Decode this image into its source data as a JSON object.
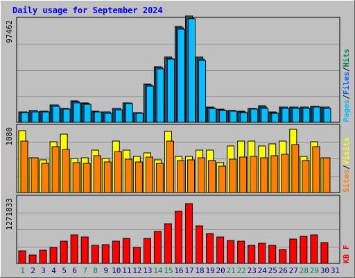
{
  "title": "Daily usage for September 2024",
  "colors": {
    "background": "#c0c0c0",
    "title_text": "#0000ff",
    "gridline": "#909090",
    "hits": "#00805c",
    "files": "#0066ff",
    "pages": "#00c0ff",
    "visits": "#ffff00",
    "sites": "#ff8000",
    "kbytes": "#ff0000",
    "weekday_label": "#000080",
    "weekend_label": "#00805c"
  },
  "chart_data": [
    {
      "type": "bar",
      "panel": "hits-files-pages",
      "ymax_label": "97462",
      "ylim": [
        0,
        97462
      ],
      "categories": [
        "1",
        "2",
        "3",
        "4",
        "5",
        "6",
        "7",
        "8",
        "9",
        "10",
        "11",
        "12",
        "13",
        "14",
        "15",
        "16",
        "17",
        "18",
        "19",
        "20",
        "21",
        "22",
        "23",
        "24",
        "25",
        "26",
        "27",
        "28",
        "29",
        "30",
        "31"
      ],
      "weekend_days": [
        "1",
        "7",
        "8",
        "14",
        "15",
        "21",
        "22",
        "28",
        "29"
      ],
      "legend": [
        {
          "text": "Hits",
          "color_key": "hits"
        },
        {
          "text": "Files",
          "color_key": "files"
        },
        {
          "text": "Pages",
          "color_key": "pages"
        }
      ],
      "series": [
        {
          "name": "Hits",
          "values": [
            10000,
            11000,
            10500,
            16500,
            13400,
            20000,
            18000,
            10300,
            9700,
            13000,
            18300,
            9300,
            35800,
            52500,
            61400,
            90300,
            100000,
            61400,
            14300,
            12200,
            11300,
            10300,
            13400,
            15500,
            9500,
            14300,
            14300,
            14300,
            15200,
            14300,
            0
          ]
        },
        {
          "name": "Files",
          "values": [
            9900,
            10800,
            10300,
            16300,
            13200,
            19800,
            17800,
            10100,
            9500,
            12800,
            18100,
            9100,
            35000,
            51600,
            60500,
            89000,
            98000,
            59300,
            13700,
            11900,
            11100,
            10000,
            13200,
            14300,
            9300,
            14100,
            14100,
            14100,
            14900,
            14100,
            0
          ]
        },
        {
          "name": "Pages",
          "values": [
            9100,
            10000,
            9600,
            15200,
            12300,
            18600,
            16800,
            9600,
            8700,
            12000,
            17400,
            8500,
            33800,
            50500,
            59700,
            87900,
            97500,
            58400,
            13200,
            11200,
            10200,
            9100,
            12200,
            13200,
            8700,
            13200,
            13200,
            13200,
            14100,
            13200,
            0
          ]
        }
      ]
    },
    {
      "type": "bar",
      "panel": "visits-sites",
      "ymax_label": "1080",
      "ylim": [
        0,
        1080
      ],
      "categories": [
        "1",
        "2",
        "3",
        "4",
        "5",
        "6",
        "7",
        "8",
        "9",
        "10",
        "11",
        "12",
        "13",
        "14",
        "15",
        "16",
        "17",
        "18",
        "19",
        "20",
        "21",
        "22",
        "23",
        "24",
        "25",
        "26",
        "27",
        "28",
        "29",
        "30",
        "31"
      ],
      "legend": [
        {
          "text": "Visits",
          "color_key": "visits"
        },
        {
          "text": "Sites",
          "color_key": "sites"
        }
      ],
      "series": [
        {
          "name": "Visits",
          "values": [
            1000,
            560,
            530,
            820,
            950,
            550,
            560,
            690,
            550,
            830,
            690,
            590,
            640,
            530,
            990,
            580,
            580,
            690,
            690,
            480,
            750,
            830,
            830,
            750,
            790,
            830,
            1020,
            590,
            820,
            560,
            0
          ]
        },
        {
          "name": "Sites",
          "values": [
            830,
            560,
            470,
            740,
            700,
            480,
            470,
            600,
            490,
            660,
            540,
            500,
            570,
            470,
            830,
            520,
            530,
            560,
            520,
            430,
            540,
            570,
            580,
            560,
            600,
            620,
            780,
            520,
            740,
            560,
            0
          ]
        }
      ]
    },
    {
      "type": "bar",
      "panel": "kbytes",
      "ymax_label": "1271833",
      "ylim": [
        0,
        1271833
      ],
      "categories": [
        "1",
        "2",
        "3",
        "4",
        "5",
        "6",
        "7",
        "8",
        "9",
        "10",
        "11",
        "12",
        "13",
        "14",
        "15",
        "16",
        "17",
        "18",
        "19",
        "20",
        "21",
        "22",
        "23",
        "24",
        "25",
        "26",
        "27",
        "28",
        "29",
        "30",
        "31"
      ],
      "legend": [
        {
          "text": "KB F",
          "color_key": "kbytes"
        }
      ],
      "series": [
        {
          "name": "KB F",
          "values": [
            240000,
            160000,
            250000,
            300000,
            420000,
            540000,
            500000,
            350000,
            360000,
            430000,
            480000,
            300000,
            480000,
            610000,
            750000,
            1000000,
            1140000,
            720000,
            570000,
            500000,
            440000,
            430000,
            350000,
            380000,
            340000,
            260000,
            470000,
            520000,
            540000,
            400000,
            0
          ]
        }
      ]
    }
  ]
}
